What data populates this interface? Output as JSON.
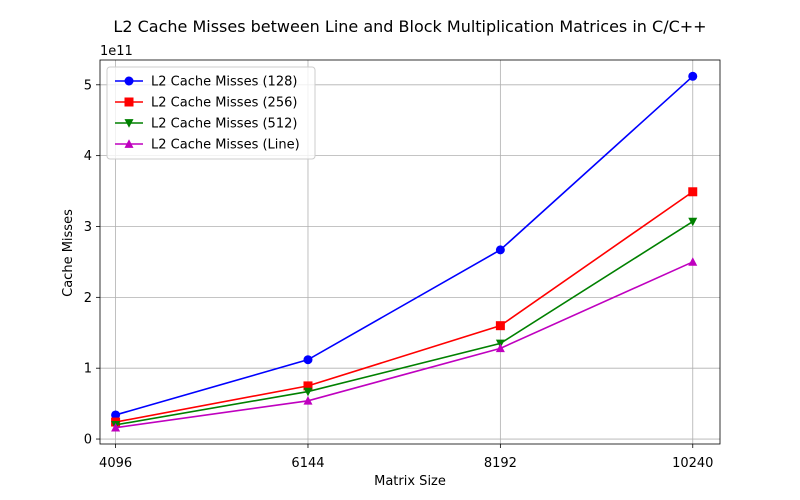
{
  "chart_data": {
    "type": "line",
    "title": "L2 Cache Misses between Line and Block Multiplication Matrices in C/C++",
    "xlabel": "Matrix Size",
    "ylabel": "Cache Misses",
    "y_offset_label": "1e11",
    "y_scale": 100000000000,
    "categories": [
      "4096",
      "6144",
      "8192",
      "10240"
    ],
    "x": [
      4096,
      6144,
      8192,
      10240
    ],
    "xlim": [
      3930,
      10530
    ],
    "ylim": [
      -0.07,
      5.35
    ],
    "yticks": [
      0,
      1,
      2,
      3,
      4,
      5
    ],
    "ytick_labels": [
      "0",
      "1",
      "2",
      "3",
      "4",
      "5"
    ],
    "grid": true,
    "legend_position": "top-left",
    "series": [
      {
        "name": "L2 Cache Misses (128)",
        "color": "#0000ff",
        "marker": "circle",
        "values": [
          0.34,
          1.12,
          2.67,
          5.12
        ]
      },
      {
        "name": "L2 Cache Misses (256)",
        "color": "#ff0000",
        "marker": "square",
        "values": [
          0.24,
          0.75,
          1.6,
          3.49
        ]
      },
      {
        "name": "L2 Cache Misses (512)",
        "color": "#008000",
        "marker": "triangle-down",
        "values": [
          0.2,
          0.67,
          1.35,
          3.07
        ]
      },
      {
        "name": "L2 Cache Misses (Line)",
        "color": "#bf00bf",
        "marker": "triangle-up",
        "values": [
          0.16,
          0.54,
          1.28,
          2.5
        ]
      }
    ]
  }
}
